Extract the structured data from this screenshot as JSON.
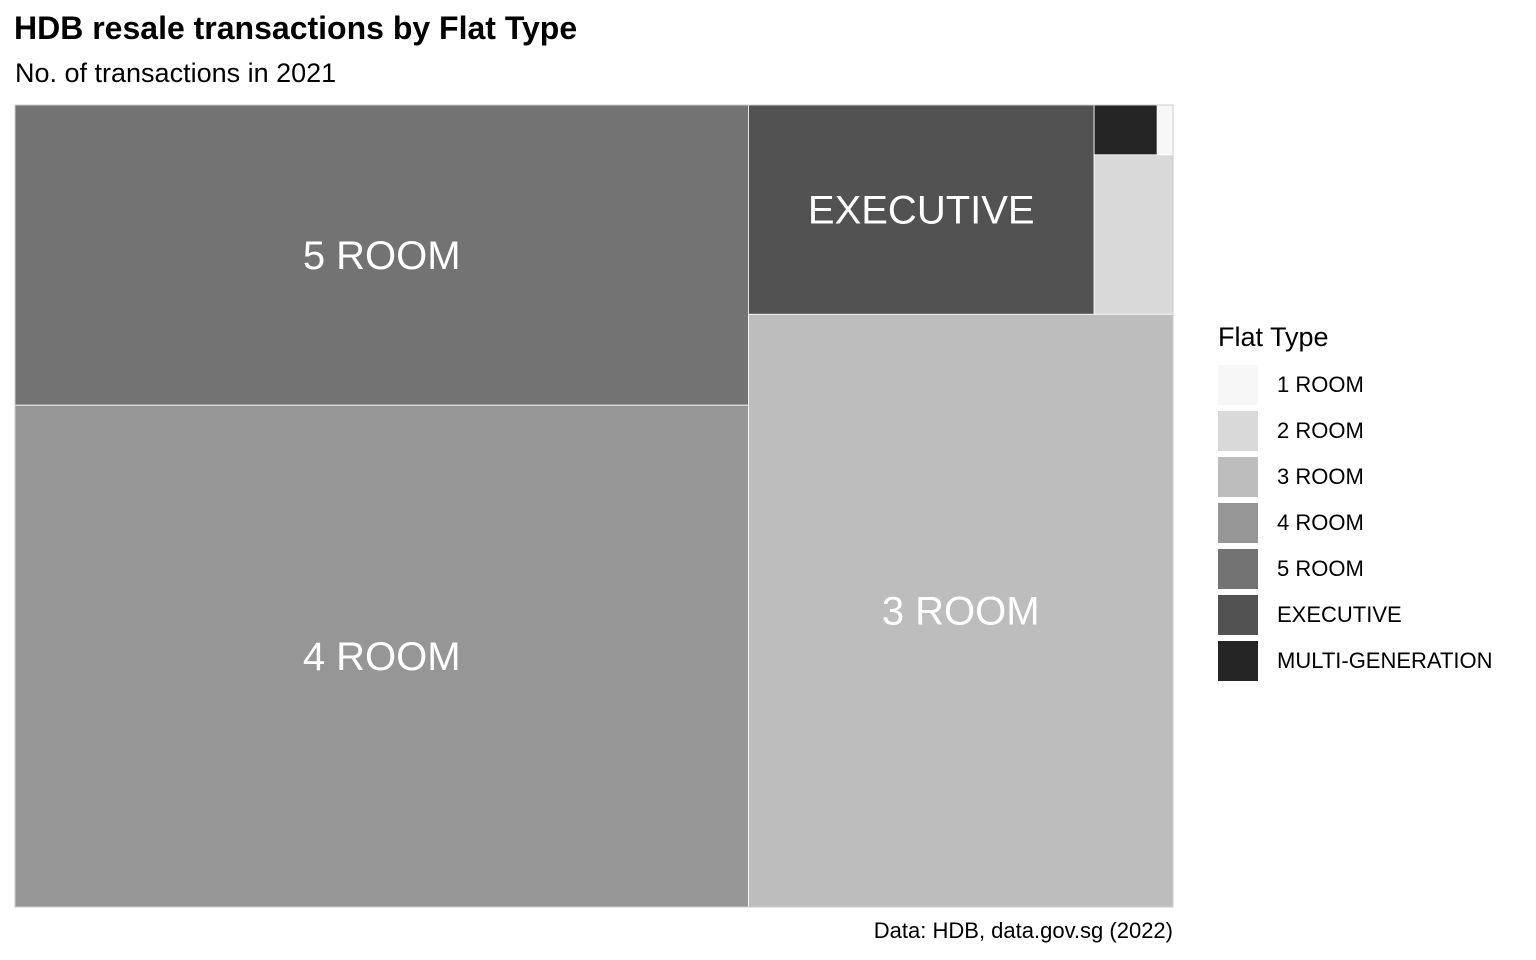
{
  "chart_data": {
    "type": "treemap",
    "title": "HDB resale transactions by Flat Type",
    "subtitle": "No. of transactions in 2021",
    "caption": "Data: HDB, data.gov.sg (2022)",
    "legend": {
      "title": "Flat Type",
      "position": "right"
    },
    "categories": [
      "1 ROOM",
      "2 ROOM",
      "3 ROOM",
      "4 ROOM",
      "5 ROOM",
      "EXECUTIVE",
      "MULTI-GENERATION"
    ],
    "values": [
      25,
      400,
      8000,
      11700,
      7000,
      2300,
      100
    ],
    "colors": [
      "#f7f7f7",
      "#d9d9d9",
      "#bdbdbd",
      "#969696",
      "#737373",
      "#525252",
      "#252525"
    ],
    "label_color": "#ffffff",
    "labeled_tiles": [
      "5 ROOM",
      "EXECUTIVE",
      "4 ROOM",
      "3 ROOM"
    ]
  }
}
